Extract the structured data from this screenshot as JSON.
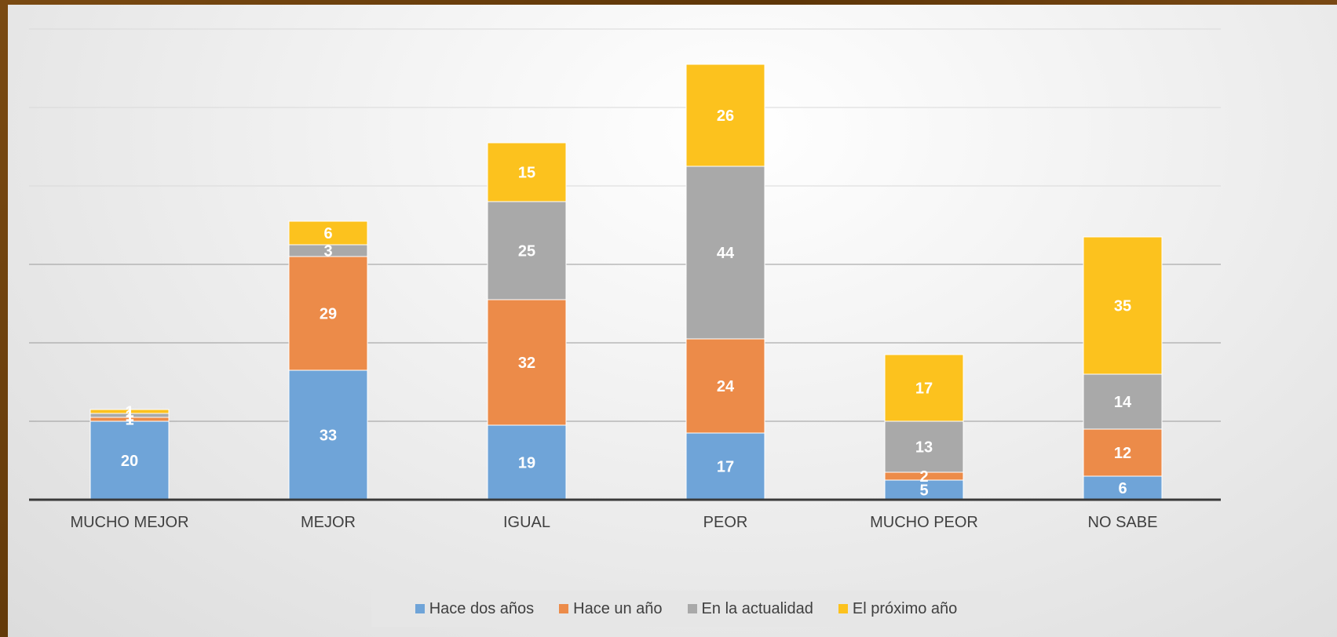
{
  "chart_data": {
    "type": "bar",
    "stacked": true,
    "categories": [
      "MUCHO MEJOR",
      "MEJOR",
      "IGUAL",
      "PEOR",
      "MUCHO PEOR",
      "NO SABE"
    ],
    "series": [
      {
        "name": "Hace dos años",
        "color": "#6fa4d8",
        "values": [
          20,
          33,
          19,
          17,
          5,
          6
        ]
      },
      {
        "name": "Hace un año",
        "color": "#ec8b49",
        "values": [
          1,
          29,
          32,
          24,
          2,
          12
        ]
      },
      {
        "name": "En la actualidad",
        "color": "#a9a9a9",
        "values": [
          1,
          3,
          25,
          44,
          13,
          14
        ]
      },
      {
        "name": "El próximo año",
        "color": "#fcc21e",
        "values": [
          1,
          6,
          15,
          26,
          17,
          35
        ]
      }
    ],
    "ylim": [
      0,
      120
    ],
    "grid": true,
    "legend_position": "bottom"
  }
}
